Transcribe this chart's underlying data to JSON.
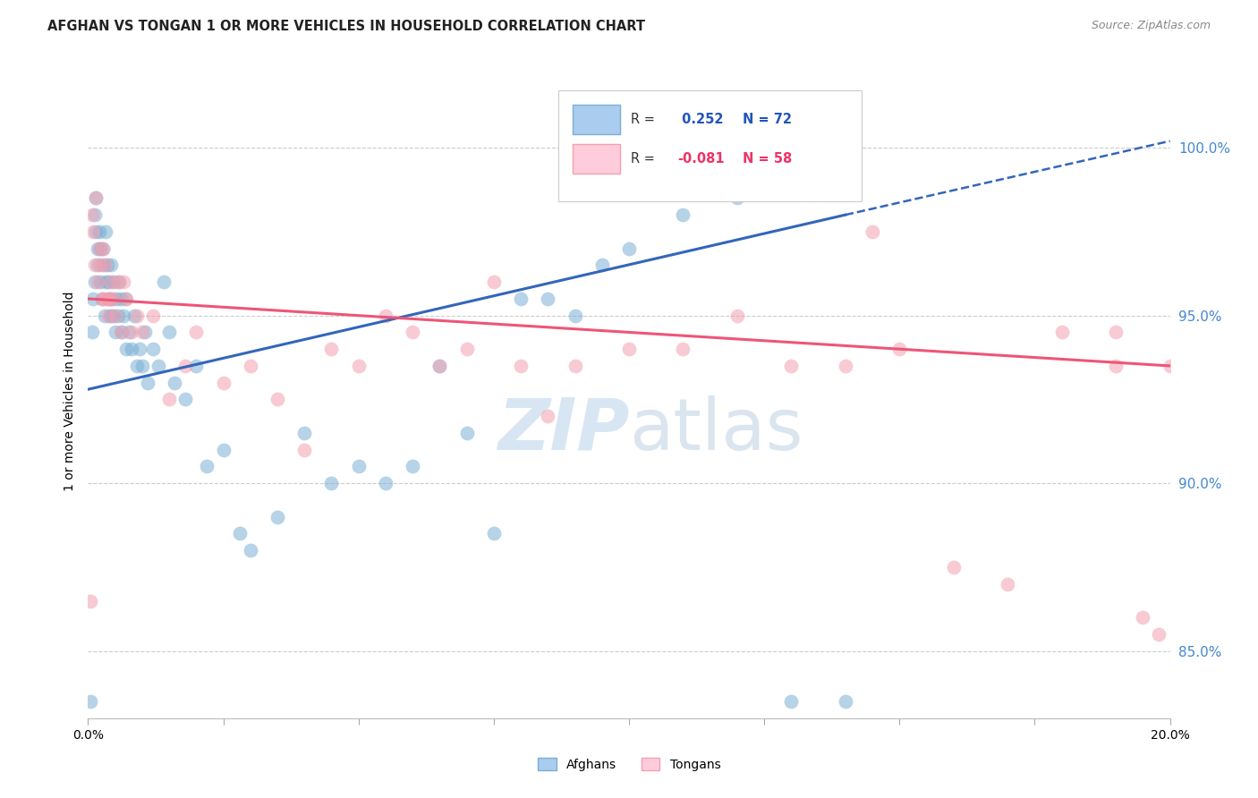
{
  "title": "AFGHAN VS TONGAN 1 OR MORE VEHICLES IN HOUSEHOLD CORRELATION CHART",
  "source": "Source: ZipAtlas.com",
  "ylabel": "1 or more Vehicles in Household",
  "xlim": [
    0.0,
    20.0
  ],
  "ylim": [
    83.0,
    102.5
  ],
  "afghan_R": 0.252,
  "afghan_N": 72,
  "tongan_R": -0.081,
  "tongan_N": 58,
  "afghan_color": "#7BAFD4",
  "tongan_color": "#F4A0B0",
  "afghan_line_color": "#3366BB",
  "tongan_line_color": "#EE5577",
  "background_color": "#FFFFFF",
  "grid_color": "#CCCCCC",
  "ytick_vals": [
    85.0,
    90.0,
    95.0,
    100.0
  ],
  "ytick_labels": [
    "85.0%",
    "90.0%",
    "95.0%",
    "100.0%"
  ],
  "afghan_line_x0": 0.0,
  "afghan_line_y0": 92.8,
  "afghan_line_x1": 14.0,
  "afghan_line_y1": 98.0,
  "afghan_dash_x0": 14.0,
  "afghan_dash_y0": 98.0,
  "afghan_dash_x1": 20.0,
  "afghan_dash_y1": 100.2,
  "tongan_line_x0": 0.0,
  "tongan_line_y0": 95.5,
  "tongan_line_x1": 20.0,
  "tongan_line_y1": 93.5,
  "afghan_x": [
    0.05,
    0.08,
    0.1,
    0.12,
    0.13,
    0.14,
    0.15,
    0.17,
    0.18,
    0.2,
    0.22,
    0.23,
    0.25,
    0.27,
    0.28,
    0.3,
    0.32,
    0.33,
    0.35,
    0.37,
    0.38,
    0.4,
    0.42,
    0.43,
    0.45,
    0.47,
    0.5,
    0.52,
    0.55,
    0.57,
    0.6,
    0.62,
    0.65,
    0.68,
    0.7,
    0.75,
    0.8,
    0.85,
    0.9,
    0.95,
    1.0,
    1.05,
    1.1,
    1.2,
    1.3,
    1.4,
    1.5,
    1.6,
    1.8,
    2.0,
    2.2,
    2.5,
    2.8,
    3.0,
    3.5,
    4.0,
    4.5,
    5.0,
    5.5,
    6.0,
    6.5,
    7.0,
    7.5,
    8.0,
    8.5,
    9.0,
    9.5,
    10.0,
    11.0,
    12.0,
    13.0,
    14.0
  ],
  "afghan_y": [
    83.5,
    94.5,
    95.5,
    96.0,
    98.0,
    98.5,
    97.5,
    97.0,
    96.5,
    97.5,
    97.0,
    96.0,
    95.5,
    96.5,
    97.0,
    95.0,
    96.0,
    97.5,
    96.5,
    95.5,
    96.0,
    95.0,
    96.5,
    95.5,
    95.0,
    96.0,
    94.5,
    95.5,
    95.0,
    96.0,
    95.5,
    94.5,
    95.0,
    95.5,
    94.0,
    94.5,
    94.0,
    95.0,
    93.5,
    94.0,
    93.5,
    94.5,
    93.0,
    94.0,
    93.5,
    96.0,
    94.5,
    93.0,
    92.5,
    93.5,
    90.5,
    91.0,
    88.5,
    88.0,
    89.0,
    91.5,
    90.0,
    90.5,
    90.0,
    90.5,
    93.5,
    91.5,
    88.5,
    95.5,
    95.5,
    95.0,
    96.5,
    97.0,
    98.0,
    98.5,
    83.5,
    83.5
  ],
  "tongan_x": [
    0.05,
    0.08,
    0.1,
    0.13,
    0.15,
    0.17,
    0.2,
    0.22,
    0.25,
    0.27,
    0.3,
    0.33,
    0.35,
    0.38,
    0.4,
    0.43,
    0.45,
    0.5,
    0.55,
    0.6,
    0.65,
    0.7,
    0.8,
    0.9,
    1.0,
    1.2,
    1.5,
    1.8,
    2.0,
    2.5,
    3.0,
    3.5,
    4.0,
    4.5,
    5.0,
    5.5,
    6.0,
    6.5,
    7.0,
    7.5,
    8.0,
    8.5,
    9.0,
    10.0,
    11.0,
    12.0,
    13.0,
    14.0,
    15.0,
    16.0,
    17.0,
    18.0,
    19.0,
    19.0,
    19.5,
    19.8,
    20.0,
    14.5
  ],
  "tongan_y": [
    86.5,
    98.0,
    97.5,
    96.5,
    98.5,
    96.0,
    97.0,
    96.5,
    95.5,
    97.0,
    95.5,
    96.5,
    95.5,
    95.0,
    95.5,
    96.0,
    95.5,
    95.0,
    96.0,
    94.5,
    96.0,
    95.5,
    94.5,
    95.0,
    94.5,
    95.0,
    92.5,
    93.5,
    94.5,
    93.0,
    93.5,
    92.5,
    91.0,
    94.0,
    93.5,
    95.0,
    94.5,
    93.5,
    94.0,
    96.0,
    93.5,
    92.0,
    93.5,
    94.0,
    94.0,
    95.0,
    93.5,
    93.5,
    94.0,
    87.5,
    87.0,
    94.5,
    94.5,
    93.5,
    86.0,
    85.5,
    93.5,
    97.5
  ]
}
